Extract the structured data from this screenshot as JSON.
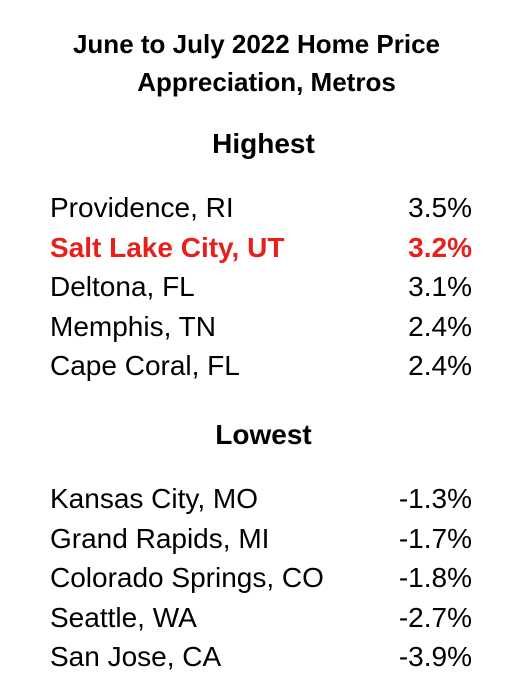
{
  "chart_data": {
    "type": "table",
    "title_lines": [
      "June to July 2022 Home Price",
      "Appreciation, Metros"
    ],
    "highlight_color": "#e8201c",
    "sections": [
      {
        "heading": "Highest",
        "rows": [
          {
            "metro": "Providence, RI",
            "value": "3.5%",
            "highlight": false
          },
          {
            "metro": "Salt Lake City, UT",
            "value": "3.2%",
            "highlight": true
          },
          {
            "metro": "Deltona, FL",
            "value": "3.1%",
            "highlight": false
          },
          {
            "metro": "Memphis, TN",
            "value": "2.4%",
            "highlight": false
          },
          {
            "metro": "Cape Coral, FL",
            "value": "2.4%",
            "highlight": false
          }
        ]
      },
      {
        "heading": "Lowest",
        "rows": [
          {
            "metro": "Kansas City, MO",
            "value": "-1.3%",
            "highlight": false
          },
          {
            "metro": "Grand Rapids, MI",
            "value": "-1.7%",
            "highlight": false
          },
          {
            "metro": "Colorado Springs, CO",
            "value": "-1.8%",
            "highlight": false
          },
          {
            "metro": "Seattle, WA",
            "value": "-2.7%",
            "highlight": false
          },
          {
            "metro": "San Jose, CA",
            "value": "-3.9%",
            "highlight": false
          }
        ]
      }
    ]
  }
}
